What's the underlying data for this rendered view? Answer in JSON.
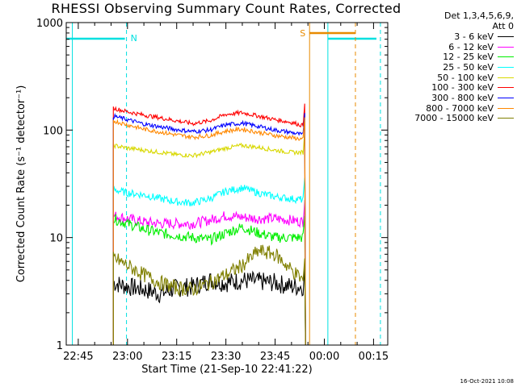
{
  "chart_data": {
    "type": "line",
    "title": "RHESSI Observing Summary Count Rates, Corrected",
    "xlabel": "Start Time (21-Sep-10 22:41:22)",
    "ylabel": "Corrected Count Rate (s⁻¹ detector⁻¹)",
    "x_ticks": [
      "22:45",
      "23:00",
      "23:15",
      "23:30",
      "23:45",
      "00:00",
      "00:15"
    ],
    "y_ticks": [
      "1",
      "10",
      "100",
      "1000"
    ],
    "y_scale": "log",
    "ylim": [
      1,
      1000
    ],
    "legend_header": [
      "Det 1,3,4,5,6,9,",
      "Att 0"
    ],
    "legend_placement": "right, outside",
    "markers": [
      {
        "label": "N",
        "color": "#00e0e0"
      },
      {
        "label": "S",
        "color": "#e88a00"
      }
    ],
    "series": [
      {
        "name": "3 - 6 keV",
        "color": "#000000",
        "values": [
          [
            22.928,
            3.8
          ],
          [
            23.0,
            3.5
          ],
          [
            23.083,
            3.3
          ],
          [
            23.167,
            3.0
          ],
          [
            23.25,
            3.4
          ],
          [
            23.333,
            3.5
          ],
          [
            23.417,
            4.0
          ],
          [
            23.5,
            3.8
          ],
          [
            23.583,
            4.0
          ],
          [
            23.667,
            3.9
          ],
          [
            23.75,
            3.8
          ],
          [
            23.833,
            3.5
          ],
          [
            23.892,
            3.5
          ]
        ]
      },
      {
        "name": "6 - 12 keV",
        "color": "#ff00ff",
        "values": [
          [
            22.928,
            16
          ],
          [
            23.0,
            15
          ],
          [
            23.083,
            14
          ],
          [
            23.167,
            13.5
          ],
          [
            23.25,
            13.5
          ],
          [
            23.333,
            13.5
          ],
          [
            23.417,
            14.5
          ],
          [
            23.5,
            16
          ],
          [
            23.583,
            15.5
          ],
          [
            23.667,
            15
          ],
          [
            23.75,
            15
          ],
          [
            23.833,
            14.5
          ],
          [
            23.892,
            14
          ]
        ]
      },
      {
        "name": "12 - 25 keV",
        "color": "#00ee00",
        "values": [
          [
            22.928,
            15
          ],
          [
            23.0,
            13.5
          ],
          [
            23.083,
            12
          ],
          [
            23.167,
            11
          ],
          [
            23.25,
            10.5
          ],
          [
            23.333,
            10
          ],
          [
            23.417,
            9.5
          ],
          [
            23.5,
            11
          ],
          [
            23.583,
            12.5
          ],
          [
            23.667,
            11
          ],
          [
            23.75,
            10
          ],
          [
            23.833,
            10
          ],
          [
            23.892,
            10
          ]
        ]
      },
      {
        "name": "25 - 50 keV",
        "color": "#00ffff",
        "values": [
          [
            22.928,
            28
          ],
          [
            23.0,
            26
          ],
          [
            23.083,
            25
          ],
          [
            23.167,
            23
          ],
          [
            23.25,
            21.5
          ],
          [
            23.333,
            21
          ],
          [
            23.417,
            23
          ],
          [
            23.5,
            27
          ],
          [
            23.583,
            29
          ],
          [
            23.667,
            26
          ],
          [
            23.75,
            24
          ],
          [
            23.833,
            23
          ],
          [
            23.892,
            22.5
          ]
        ]
      },
      {
        "name": "50 - 100 keV",
        "color": "#d8d800",
        "values": [
          [
            22.928,
            72
          ],
          [
            23.0,
            68
          ],
          [
            23.083,
            65
          ],
          [
            23.167,
            62
          ],
          [
            23.25,
            59
          ],
          [
            23.333,
            58
          ],
          [
            23.417,
            62
          ],
          [
            23.5,
            68
          ],
          [
            23.583,
            72
          ],
          [
            23.667,
            69
          ],
          [
            23.75,
            65
          ],
          [
            23.833,
            62
          ],
          [
            23.892,
            62
          ]
        ]
      },
      {
        "name": "100 - 300 keV",
        "color": "#ff0000",
        "values": [
          [
            22.928,
            160
          ],
          [
            23.0,
            148
          ],
          [
            23.083,
            138
          ],
          [
            23.167,
            130
          ],
          [
            23.25,
            122
          ],
          [
            23.333,
            115
          ],
          [
            23.417,
            122
          ],
          [
            23.5,
            140
          ],
          [
            23.583,
            145
          ],
          [
            23.667,
            135
          ],
          [
            23.75,
            125
          ],
          [
            23.833,
            118
          ],
          [
            23.892,
            110
          ]
        ]
      },
      {
        "name": "300 - 800 keV",
        "color": "#0000ff",
        "values": [
          [
            22.928,
            135
          ],
          [
            23.0,
            125
          ],
          [
            23.083,
            114
          ],
          [
            23.167,
            107
          ],
          [
            23.25,
            101
          ],
          [
            23.333,
            97
          ],
          [
            23.417,
            100
          ],
          [
            23.5,
            112
          ],
          [
            23.583,
            116
          ],
          [
            23.667,
            108
          ],
          [
            23.75,
            100
          ],
          [
            23.833,
            95
          ],
          [
            23.892,
            90
          ]
        ]
      },
      {
        "name": "800 - 7000 keV",
        "color": "#ff8800",
        "values": [
          [
            22.928,
            122
          ],
          [
            23.0,
            112
          ],
          [
            23.083,
            102
          ],
          [
            23.167,
            96
          ],
          [
            23.25,
            90
          ],
          [
            23.333,
            86
          ],
          [
            23.417,
            89
          ],
          [
            23.5,
            98
          ],
          [
            23.583,
            102
          ],
          [
            23.667,
            95
          ],
          [
            23.75,
            89
          ],
          [
            23.833,
            85
          ],
          [
            23.892,
            82
          ]
        ]
      },
      {
        "name": "7000 - 15000 keV",
        "color": "#808000",
        "values": [
          [
            22.928,
            6.5
          ],
          [
            23.0,
            5.5
          ],
          [
            23.083,
            4.5
          ],
          [
            23.167,
            3.8
          ],
          [
            23.25,
            3.4
          ],
          [
            23.333,
            3.3
          ],
          [
            23.417,
            3.8
          ],
          [
            23.5,
            4.5
          ],
          [
            23.583,
            5.5
          ],
          [
            23.667,
            7.5
          ],
          [
            23.75,
            7.0
          ],
          [
            23.833,
            5.0
          ],
          [
            23.892,
            4.0
          ]
        ]
      }
    ]
  },
  "footer": {
    "timestamp": "16-Oct-2021 10:08"
  }
}
